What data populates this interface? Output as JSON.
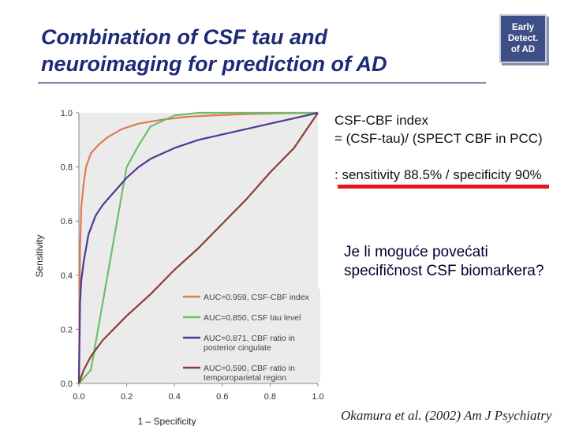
{
  "slide": {
    "title_line1": "Combination of CSF tau and",
    "title_line2": "neuroimaging for prediction of AD",
    "badge": [
      "Early",
      "Detect.",
      "of AD"
    ],
    "formula_line1": "CSF-CBF index",
    "formula_line2": "= (CSF-tau)/ (SPECT CBF in PCC)",
    "sens_spec": ": sensitivity 88.5% / specificity 90%",
    "question": "Je li moguće povećati specifičnost CSF biomarkera?",
    "citation": "Okamura et al. (2002) Am J Psychiatry",
    "colors": {
      "title": "#1e2a78",
      "badge_bg": "#3e4e86",
      "underline": "#e8141b",
      "plot_bg": "#ebebeb"
    }
  },
  "chart_data": {
    "type": "line",
    "xlabel": "1 – Specificity",
    "ylabel": "Sensitivity",
    "xlim": [
      0,
      1
    ],
    "ylim": [
      0,
      1
    ],
    "xticks": [
      "0.0",
      "0.2",
      "0.4",
      "0.6",
      "0.8",
      "1.0"
    ],
    "yticks": [
      "0.0",
      "0.2",
      "0.4",
      "0.6",
      "0.8",
      "1.0"
    ],
    "grid": false,
    "legend_position": "bottom-right",
    "series": [
      {
        "name": "AUC=0.959, CSF-CBF index",
        "color": "#e07a52",
        "x": [
          0,
          0.005,
          0.01,
          0.02,
          0.03,
          0.05,
          0.08,
          0.12,
          0.18,
          0.25,
          0.35,
          0.45,
          0.55,
          0.7,
          0.85,
          1.0
        ],
        "y": [
          0,
          0.5,
          0.65,
          0.74,
          0.8,
          0.85,
          0.88,
          0.91,
          0.94,
          0.96,
          0.975,
          0.985,
          0.99,
          0.995,
          0.998,
          1.0
        ]
      },
      {
        "name": "AUC=0.850, CSF tau level",
        "color": "#6cbf6a",
        "x": [
          0,
          0.05,
          0.1,
          0.15,
          0.2,
          0.25,
          0.3,
          0.35,
          0.4,
          0.5,
          0.7,
          1.0
        ],
        "y": [
          0,
          0.05,
          0.3,
          0.55,
          0.8,
          0.88,
          0.95,
          0.97,
          0.99,
          1.0,
          1.0,
          1.0
        ]
      },
      {
        "name": "AUC=0.871, CBF ratio in posterior cingulate",
        "color": "#4a3c91",
        "x": [
          0,
          0.005,
          0.01,
          0.02,
          0.04,
          0.07,
          0.1,
          0.15,
          0.2,
          0.25,
          0.3,
          0.4,
          0.5,
          0.6,
          0.7,
          0.8,
          0.9,
          1.0
        ],
        "y": [
          0,
          0.3,
          0.38,
          0.45,
          0.55,
          0.62,
          0.66,
          0.71,
          0.76,
          0.8,
          0.83,
          0.87,
          0.9,
          0.92,
          0.94,
          0.96,
          0.98,
          1.0
        ]
      },
      {
        "name": "AUC=0.590, CBF ratio in temporoparietal region",
        "color": "#8b3e2f",
        "x": [
          0,
          0.02,
          0.05,
          0.1,
          0.2,
          0.3,
          0.4,
          0.5,
          0.6,
          0.7,
          0.8,
          0.9,
          1.0
        ],
        "y": [
          0,
          0.05,
          0.1,
          0.16,
          0.25,
          0.33,
          0.42,
          0.5,
          0.59,
          0.68,
          0.78,
          0.87,
          1.0
        ]
      }
    ]
  }
}
